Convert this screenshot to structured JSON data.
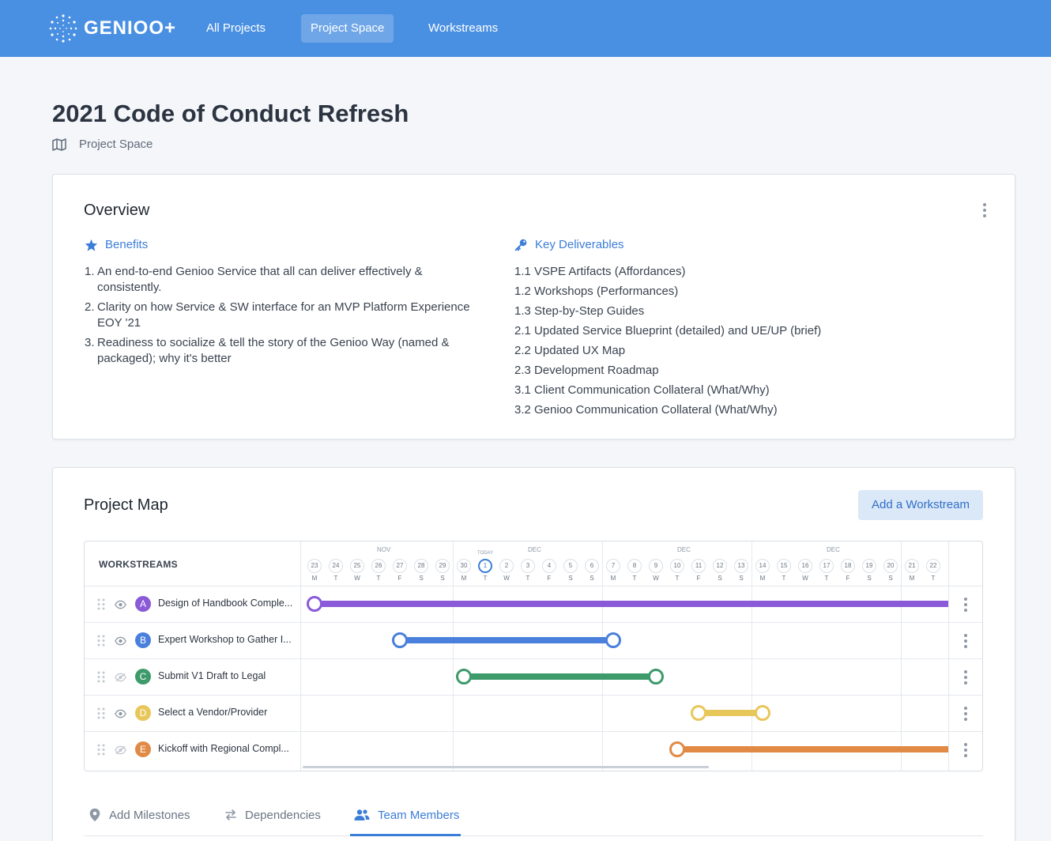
{
  "brand": {
    "name": "GENIOO+"
  },
  "nav": {
    "items": [
      {
        "label": "All Projects",
        "active": false
      },
      {
        "label": "Project Space",
        "active": true
      },
      {
        "label": "Workstreams",
        "active": false
      }
    ]
  },
  "page": {
    "title": "2021 Code of Conduct Refresh",
    "breadcrumb": "Project Space"
  },
  "overview": {
    "title": "Overview",
    "benefits": {
      "heading": "Benefits",
      "items": [
        {
          "num": "1.",
          "text": "An end-to-end Genioo Service that all can deliver effectively & consistently."
        },
        {
          "num": "2.",
          "text": "Clarity on how Service & SW interface for an MVP Platform Experience EOY '21"
        },
        {
          "num": "3.",
          "text": "Readiness to socialize & tell the story of the Genioo Way (named & packaged); why it's better"
        }
      ]
    },
    "deliverables": {
      "heading": "Key Deliverables",
      "items": [
        "1.1 VSPE Artifacts (Affordances)",
        "1.2 Workshops (Performances)",
        "1.3 Step-by-Step Guides",
        "2.1 Updated Service Blueprint (detailed) and UE/UP (brief)",
        "2.2 Updated UX Map",
        "2.3 Development Roadmap",
        "3.1 Client Communication Collateral (What/Why)",
        "3.2 Genioo Communication Collateral (What/Why)"
      ]
    }
  },
  "project_map": {
    "title": "Project Map",
    "add_button": "Add a Workstream",
    "workstreams_header": "WORKSTREAMS",
    "today_label": "TODAY",
    "months": [
      "NOV",
      "DEC",
      "DEC",
      "DEC"
    ],
    "days": [
      {
        "d": "23",
        "w": "M"
      },
      {
        "d": "24",
        "w": "T"
      },
      {
        "d": "25",
        "w": "W"
      },
      {
        "d": "26",
        "w": "T"
      },
      {
        "d": "27",
        "w": "F"
      },
      {
        "d": "28",
        "w": "S"
      },
      {
        "d": "29",
        "w": "S"
      },
      {
        "d": "30",
        "w": "M"
      },
      {
        "d": "1",
        "w": "T",
        "today": true
      },
      {
        "d": "2",
        "w": "W"
      },
      {
        "d": "3",
        "w": "T"
      },
      {
        "d": "4",
        "w": "F"
      },
      {
        "d": "5",
        "w": "S"
      },
      {
        "d": "6",
        "w": "S"
      },
      {
        "d": "7",
        "w": "M"
      },
      {
        "d": "8",
        "w": "T"
      },
      {
        "d": "9",
        "w": "W"
      },
      {
        "d": "10",
        "w": "T"
      },
      {
        "d": "11",
        "w": "F"
      },
      {
        "d": "12",
        "w": "S"
      },
      {
        "d": "13",
        "w": "S"
      },
      {
        "d": "14",
        "w": "M"
      },
      {
        "d": "15",
        "w": "T"
      },
      {
        "d": "16",
        "w": "W"
      },
      {
        "d": "17",
        "w": "T"
      },
      {
        "d": "18",
        "w": "F"
      },
      {
        "d": "19",
        "w": "S"
      },
      {
        "d": "20",
        "w": "S"
      },
      {
        "d": "21",
        "w": "M"
      },
      {
        "d": "22",
        "w": "T"
      }
    ],
    "workstreams": [
      {
        "letter": "A",
        "name": "Design of Handbook Comple...",
        "color": "#8a5ad8",
        "visible": true,
        "start_day": "23",
        "end_day": null
      },
      {
        "letter": "B",
        "name": "Expert Workshop to Gather I...",
        "color": "#4a80dc",
        "visible": true,
        "start_day": "27",
        "end_day": "7"
      },
      {
        "letter": "C",
        "name": "Submit V1 Draft to Legal",
        "color": "#3d9a6a",
        "visible": false,
        "start_day": "30",
        "end_day": "9"
      },
      {
        "letter": "D",
        "name": "Select a Vendor/Provider",
        "color": "#e8c75a",
        "visible": true,
        "start_day": "11",
        "end_day": "14"
      },
      {
        "letter": "E",
        "name": "Kickoff with Regional Compl...",
        "color": "#e08a45",
        "visible": false,
        "start_day": "10",
        "end_day": null
      }
    ]
  },
  "tabs": [
    {
      "label": "Add Milestones",
      "icon": "map-pin-icon",
      "active": false
    },
    {
      "label": "Dependencies",
      "icon": "swap-arrows-icon",
      "active": false
    },
    {
      "label": "Team Members",
      "icon": "people-icon",
      "active": true
    }
  ]
}
